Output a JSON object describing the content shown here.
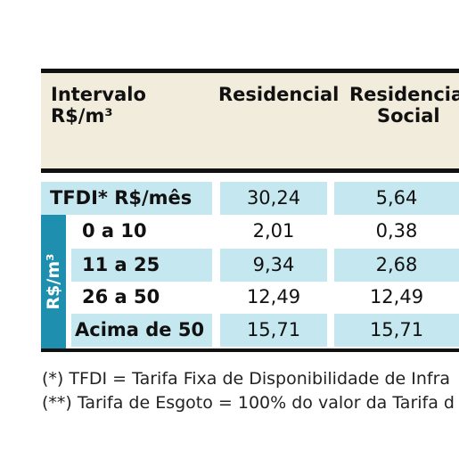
{
  "table": {
    "header": {
      "col1_line1": "Intervalo",
      "col1_line2": "R$/m³",
      "col2": "Residencial",
      "col3_line1": "Residencial",
      "col3_line2": "Social"
    },
    "tfdi": {
      "label": "TFDI* R$/mês",
      "residencial": "30,24",
      "social": "5,64"
    },
    "unit_label": "R$/m³",
    "rows": [
      {
        "range": "0 a 10",
        "residencial": "2,01",
        "social": "0,38"
      },
      {
        "range": "11 a 25",
        "residencial": "9,34",
        "social": "2,68"
      },
      {
        "range": "26 a 50",
        "residencial": "12,49",
        "social": "12,49"
      },
      {
        "range": "Acima de 50",
        "residencial": "15,71",
        "social": "15,71"
      }
    ]
  },
  "notes": {
    "note1": "(*) TFDI = Tarifa Fixa de Disponibilidade de Infra",
    "note2": "(**) Tarifa de Esgoto = 100% do valor da Tarifa d"
  },
  "colors": {
    "header_bg": "#f2ecdc",
    "row_blue": "#c5e7ef",
    "side_band": "#1f8fb0"
  }
}
